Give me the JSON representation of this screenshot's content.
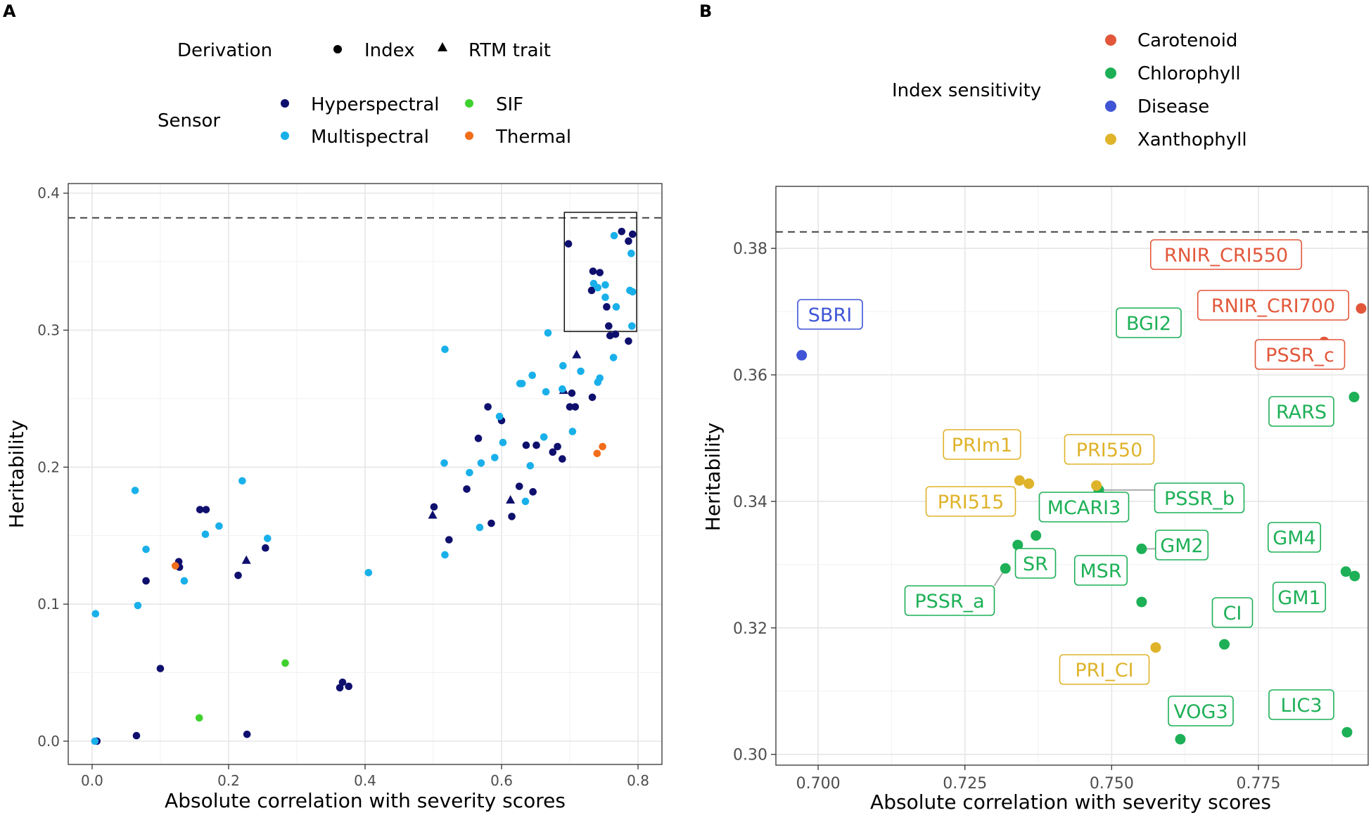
{
  "chart_data": [
    {
      "panel": "A",
      "type": "scatter",
      "xlabel": "Absolute correlation with severity scores",
      "ylabel": "Heritability",
      "xlim": [
        -0.035,
        0.835
      ],
      "ylim": [
        -0.017,
        0.407
      ],
      "xticks": [
        0.0,
        0.2,
        0.4,
        0.6,
        0.8
      ],
      "xtick_labels": [
        "0.0",
        "0.2",
        "0.4",
        "0.6",
        "0.8"
      ],
      "yticks": [
        0.0,
        0.1,
        0.2,
        0.3,
        0.4
      ],
      "ytick_labels": [
        "0.0",
        "0.1",
        "0.2",
        "0.3",
        "0.4"
      ],
      "grid": true,
      "reference_line": {
        "y": 0.382,
        "style": "dashed"
      },
      "zoom_box": {
        "x": [
          0.692,
          0.798
        ],
        "y": [
          0.299,
          0.386
        ]
      },
      "legend": {
        "position": "top",
        "derivation_title": "Derivation",
        "derivation": [
          {
            "label": "Index",
            "shape": "circle"
          },
          {
            "label": "RTM trait",
            "shape": "triangle"
          }
        ],
        "sensor_title": "Sensor",
        "sensor": [
          {
            "label": "Hyperspectral",
            "color": "#0f0f6e"
          },
          {
            "label": "SIF",
            "color": "#3ed12d"
          },
          {
            "label": "Multispectral",
            "color": "#19b0ea"
          },
          {
            "label": "Thermal",
            "color": "#f26d1a"
          }
        ]
      },
      "series": [
        {
          "name": "Hyperspectral",
          "color": "#0f0f6e",
          "points": [
            {
              "x": 0.007,
              "y": 0.0,
              "s": "circle"
            },
            {
              "x": 0.065,
              "y": 0.004,
              "s": "circle"
            },
            {
              "x": 0.227,
              "y": 0.005,
              "s": "circle"
            },
            {
              "x": 0.1,
              "y": 0.053,
              "s": "circle"
            },
            {
              "x": 0.363,
              "y": 0.039,
              "s": "circle"
            },
            {
              "x": 0.367,
              "y": 0.043,
              "s": "circle"
            },
            {
              "x": 0.376,
              "y": 0.04,
              "s": "circle"
            },
            {
              "x": 0.079,
              "y": 0.117,
              "s": "circle"
            },
            {
              "x": 0.127,
              "y": 0.131,
              "s": "circle"
            },
            {
              "x": 0.128,
              "y": 0.127,
              "s": "circle"
            },
            {
              "x": 0.158,
              "y": 0.169,
              "s": "circle"
            },
            {
              "x": 0.167,
              "y": 0.169,
              "s": "circle"
            },
            {
              "x": 0.214,
              "y": 0.121,
              "s": "circle"
            },
            {
              "x": 0.226,
              "y": 0.132,
              "s": "triangle"
            },
            {
              "x": 0.254,
              "y": 0.141,
              "s": "circle"
            },
            {
              "x": 0.499,
              "y": 0.165,
              "s": "triangle"
            },
            {
              "x": 0.501,
              "y": 0.171,
              "s": "circle"
            },
            {
              "x": 0.523,
              "y": 0.147,
              "s": "circle"
            },
            {
              "x": 0.549,
              "y": 0.184,
              "s": "circle"
            },
            {
              "x": 0.566,
              "y": 0.221,
              "s": "circle"
            },
            {
              "x": 0.58,
              "y": 0.244,
              "s": "circle"
            },
            {
              "x": 0.585,
              "y": 0.159,
              "s": "circle"
            },
            {
              "x": 0.6,
              "y": 0.234,
              "s": "circle"
            },
            {
              "x": 0.613,
              "y": 0.176,
              "s": "triangle"
            },
            {
              "x": 0.615,
              "y": 0.164,
              "s": "circle"
            },
            {
              "x": 0.626,
              "y": 0.186,
              "s": "circle"
            },
            {
              "x": 0.636,
              "y": 0.216,
              "s": "circle"
            },
            {
              "x": 0.646,
              "y": 0.182,
              "s": "circle"
            },
            {
              "x": 0.651,
              "y": 0.216,
              "s": "circle"
            },
            {
              "x": 0.675,
              "y": 0.211,
              "s": "circle"
            },
            {
              "x": 0.682,
              "y": 0.215,
              "s": "circle"
            },
            {
              "x": 0.689,
              "y": 0.206,
              "s": "circle"
            },
            {
              "x": 0.691,
              "y": 0.256,
              "s": "triangle"
            },
            {
              "x": 0.7,
              "y": 0.244,
              "s": "circle"
            },
            {
              "x": 0.703,
              "y": 0.254,
              "s": "circle"
            },
            {
              "x": 0.708,
              "y": 0.244,
              "s": "circle"
            },
            {
              "x": 0.71,
              "y": 0.282,
              "s": "triangle"
            },
            {
              "x": 0.733,
              "y": 0.251,
              "s": "circle"
            },
            {
              "x": 0.698,
              "y": 0.363,
              "s": "circle"
            },
            {
              "x": 0.732,
              "y": 0.329,
              "s": "circle"
            },
            {
              "x": 0.734,
              "y": 0.343,
              "s": "circle"
            },
            {
              "x": 0.744,
              "y": 0.342,
              "s": "circle"
            },
            {
              "x": 0.754,
              "y": 0.317,
              "s": "circle"
            },
            {
              "x": 0.757,
              "y": 0.303,
              "s": "circle"
            },
            {
              "x": 0.759,
              "y": 0.296,
              "s": "circle"
            },
            {
              "x": 0.767,
              "y": 0.297,
              "s": "circle"
            },
            {
              "x": 0.776,
              "y": 0.372,
              "s": "circle"
            },
            {
              "x": 0.786,
              "y": 0.365,
              "s": "circle"
            },
            {
              "x": 0.786,
              "y": 0.292,
              "s": "circle"
            },
            {
              "x": 0.792,
              "y": 0.37,
              "s": "circle"
            }
          ]
        },
        {
          "name": "Multispectral",
          "color": "#19b0ea",
          "points": [
            {
              "x": 0.005,
              "y": 0.093,
              "s": "circle"
            },
            {
              "x": 0.004,
              "y": 0.0,
              "s": "circle"
            },
            {
              "x": 0.063,
              "y": 0.183,
              "s": "circle"
            },
            {
              "x": 0.067,
              "y": 0.099,
              "s": "circle"
            },
            {
              "x": 0.079,
              "y": 0.14,
              "s": "circle"
            },
            {
              "x": 0.135,
              "y": 0.117,
              "s": "circle"
            },
            {
              "x": 0.166,
              "y": 0.151,
              "s": "circle"
            },
            {
              "x": 0.186,
              "y": 0.157,
              "s": "circle"
            },
            {
              "x": 0.22,
              "y": 0.19,
              "s": "circle"
            },
            {
              "x": 0.257,
              "y": 0.148,
              "s": "circle"
            },
            {
              "x": 0.405,
              "y": 0.123,
              "s": "circle"
            },
            {
              "x": 0.517,
              "y": 0.286,
              "s": "circle"
            },
            {
              "x": 0.516,
              "y": 0.203,
              "s": "circle"
            },
            {
              "x": 0.517,
              "y": 0.136,
              "s": "circle"
            },
            {
              "x": 0.553,
              "y": 0.196,
              "s": "circle"
            },
            {
              "x": 0.568,
              "y": 0.156,
              "s": "circle"
            },
            {
              "x": 0.57,
              "y": 0.203,
              "s": "circle"
            },
            {
              "x": 0.59,
              "y": 0.207,
              "s": "circle"
            },
            {
              "x": 0.597,
              "y": 0.237,
              "s": "circle"
            },
            {
              "x": 0.602,
              "y": 0.218,
              "s": "circle"
            },
            {
              "x": 0.627,
              "y": 0.261,
              "s": "circle"
            },
            {
              "x": 0.63,
              "y": 0.261,
              "s": "circle"
            },
            {
              "x": 0.635,
              "y": 0.175,
              "s": "circle"
            },
            {
              "x": 0.642,
              "y": 0.201,
              "s": "circle"
            },
            {
              "x": 0.645,
              "y": 0.267,
              "s": "circle"
            },
            {
              "x": 0.662,
              "y": 0.222,
              "s": "circle"
            },
            {
              "x": 0.665,
              "y": 0.255,
              "s": "circle"
            },
            {
              "x": 0.668,
              "y": 0.298,
              "s": "circle"
            },
            {
              "x": 0.689,
              "y": 0.257,
              "s": "circle"
            },
            {
              "x": 0.69,
              "y": 0.274,
              "s": "circle"
            },
            {
              "x": 0.704,
              "y": 0.226,
              "s": "circle"
            },
            {
              "x": 0.716,
              "y": 0.27,
              "s": "circle"
            },
            {
              "x": 0.741,
              "y": 0.262,
              "s": "circle"
            },
            {
              "x": 0.744,
              "y": 0.265,
              "s": "circle"
            },
            {
              "x": 0.764,
              "y": 0.28,
              "s": "circle"
            },
            {
              "x": 0.735,
              "y": 0.334,
              "s": "circle"
            },
            {
              "x": 0.741,
              "y": 0.331,
              "s": "circle"
            },
            {
              "x": 0.752,
              "y": 0.333,
              "s": "circle"
            },
            {
              "x": 0.752,
              "y": 0.324,
              "s": "circle"
            },
            {
              "x": 0.765,
              "y": 0.369,
              "s": "circle"
            },
            {
              "x": 0.768,
              "y": 0.317,
              "s": "circle"
            },
            {
              "x": 0.788,
              "y": 0.329,
              "s": "circle"
            },
            {
              "x": 0.79,
              "y": 0.356,
              "s": "circle"
            },
            {
              "x": 0.791,
              "y": 0.303,
              "s": "circle"
            },
            {
              "x": 0.792,
              "y": 0.328,
              "s": "circle"
            }
          ]
        },
        {
          "name": "SIF",
          "color": "#3ed12d",
          "points": [
            {
              "x": 0.157,
              "y": 0.017,
              "s": "circle"
            },
            {
              "x": 0.283,
              "y": 0.057,
              "s": "circle"
            }
          ]
        },
        {
          "name": "Thermal",
          "color": "#f26d1a",
          "points": [
            {
              "x": 0.122,
              "y": 0.128,
              "s": "circle"
            },
            {
              "x": 0.74,
              "y": 0.21,
              "s": "circle"
            },
            {
              "x": 0.748,
              "y": 0.215,
              "s": "circle"
            }
          ]
        }
      ]
    },
    {
      "panel": "B",
      "type": "scatter",
      "xlabel": "Absolute correlation with severity scores",
      "ylabel": "Heritability",
      "xlim": [
        0.6928,
        0.7937
      ],
      "ylim": [
        0.2983,
        0.3898
      ],
      "xticks": [
        0.7,
        0.725,
        0.75,
        0.775
      ],
      "xtick_labels": [
        "0.700",
        "0.725",
        "0.750",
        "0.775"
      ],
      "yticks": [
        0.3,
        0.32,
        0.34,
        0.36,
        0.38
      ],
      "ytick_labels": [
        "0.30",
        "0.32",
        "0.34",
        "0.36",
        "0.38"
      ],
      "grid": true,
      "reference_line": {
        "y": 0.3826,
        "style": "dashed"
      },
      "legend": {
        "position": "top",
        "title": "Index sensitivity",
        "items": [
          {
            "label": "Carotenoid",
            "color": "#e2573a"
          },
          {
            "label": "Chlorophyll",
            "color": "#1db056"
          },
          {
            "label": "Disease",
            "color": "#3f55d6"
          },
          {
            "label": "Xanthophyll",
            "color": "#dfb32a"
          }
        ]
      },
      "points": [
        {
          "label": "SBRI",
          "group": "Disease",
          "x": 0.6972,
          "y": 0.3631
        },
        {
          "label": "RNIR_CRI550",
          "group": "Carotenoid",
          "x": 0.7771,
          "y": 0.3722
        },
        {
          "label": "RNIR_CRI700",
          "group": "Carotenoid",
          "x": 0.7925,
          "y": 0.3705
        },
        {
          "label": "PSSR_c",
          "group": "Carotenoid",
          "x": 0.7862,
          "y": 0.3652
        },
        {
          "label": "BGI2",
          "group": "Chlorophyll",
          "x": 0.7665,
          "y": 0.3699
        },
        {
          "label": "RARS",
          "group": "Chlorophyll",
          "x": 0.7913,
          "y": 0.3565
        },
        {
          "label": "PSSR_b",
          "group": "Chlorophyll",
          "x": 0.7478,
          "y": 0.3418
        },
        {
          "label": "MCARI3",
          "group": "Chlorophyll",
          "x": 0.7371,
          "y": 0.3346
        },
        {
          "label": "SR",
          "group": "Chlorophyll",
          "x": 0.734,
          "y": 0.3331
        },
        {
          "label": "PSSR_a",
          "group": "Chlorophyll",
          "x": 0.7319,
          "y": 0.3294
        },
        {
          "label": "GM2",
          "group": "Chlorophyll",
          "x": 0.7551,
          "y": 0.3325
        },
        {
          "label": "MSR",
          "group": "Chlorophyll",
          "x": 0.7551,
          "y": 0.3241
        },
        {
          "label": "GM4",
          "group": "Chlorophyll",
          "x": 0.7899,
          "y": 0.3289
        },
        {
          "label": "GM1",
          "group": "Chlorophyll",
          "x": 0.7914,
          "y": 0.3282
        },
        {
          "label": "CI",
          "group": "Chlorophyll",
          "x": 0.7692,
          "y": 0.3174
        },
        {
          "label": "VOG3",
          "group": "Chlorophyll",
          "x": 0.7617,
          "y": 0.3024
        },
        {
          "label": "LIC3",
          "group": "Chlorophyll",
          "x": 0.7901,
          "y": 0.3035
        },
        {
          "label": "PRIm1",
          "group": "Xanthophyll",
          "x": 0.7343,
          "y": 0.3433
        },
        {
          "label": "PRI515",
          "group": "Xanthophyll",
          "x": 0.7359,
          "y": 0.3428
        },
        {
          "label": "PRI550",
          "group": "Xanthophyll",
          "x": 0.7474,
          "y": 0.3425
        },
        {
          "label": "PRI_CI",
          "group": "Xanthophyll",
          "x": 0.7575,
          "y": 0.3169
        }
      ]
    }
  ]
}
